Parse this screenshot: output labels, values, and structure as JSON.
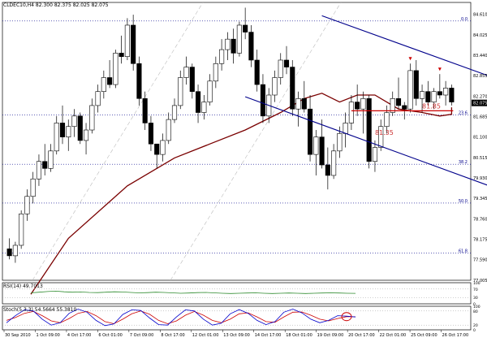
{
  "symbol_header": "CLDEC10,H4  82.300 82.375 82.025 82.075",
  "rsi_label": "RSI(14) 49.7013",
  "stoch_label": "Stoch(5,3,3) 54.5664 55.3810",
  "colors": {
    "background": "#ffffff",
    "bull_candle": "#ffffff",
    "bear_candle": "#000000",
    "moving_average": "#7a0000",
    "channel_lines": "#00008b",
    "fib_lines": "#00008b",
    "support_line": "#cc0000",
    "annotation_text": "#cc3333",
    "arrow": "#cc0000",
    "rsi_line": "#2e8b2e",
    "stoch_main": "#0000cc",
    "stoch_signal": "#cc0000",
    "price_tag": "#000000"
  },
  "price_axis": {
    "labels": [
      "84.610",
      "84.025",
      "83.440",
      "82.855",
      "82.270",
      "81.685",
      "81.100",
      "80.515",
      "79.930",
      "79.345",
      "78.760",
      "78.175",
      "77.590",
      "77.005"
    ],
    "current_price": "82.075"
  },
  "time_axis": {
    "labels": [
      "30 Sep 2010",
      "1 Oct 09:00",
      "4 Oct 17:00",
      "6 Oct 01:00",
      "7 Oct 09:00",
      "8 Oct 17:00",
      "12 Oct 01:00",
      "13 Oct 09:00",
      "14 Oct 17:00",
      "18 Oct 01:00",
      "19 Oct 09:00",
      "20 Oct 17:00",
      "22 Oct 01:00",
      "25 Oct 09:00",
      "26 Oct 17:00"
    ]
  },
  "fib_labels": [
    "0.0",
    "23.6",
    "38.2",
    "50.0",
    "61.8"
  ],
  "annotations": [
    "81.85",
    "81.35"
  ],
  "rsi_axis": [
    "100",
    "70",
    "30",
    "0"
  ],
  "stoch_axis": [
    "100",
    "80",
    "20",
    "0"
  ],
  "chart_data": {
    "type": "candlestick",
    "title": "CLDEC10,H4",
    "ylim": [
      77.0,
      84.95
    ],
    "fib_levels": [
      {
        "label": "0.0",
        "value": 84.42
      },
      {
        "label": "23.6",
        "value": 81.73
      },
      {
        "label": "38.2",
        "value": 80.32
      },
      {
        "label": "50.0",
        "value": 79.21
      },
      {
        "label": "61.8",
        "value": 77.78
      }
    ],
    "channel": {
      "upper": {
        "from": {
          "bar": 53,
          "price": 84.57
        },
        "to": {
          "bar": 112,
          "price": 80.98
        }
      },
      "lower": {
        "from": {
          "bar": 40,
          "price": 82.25
        },
        "to": {
          "bar": 98,
          "price": 78.68
        }
      }
    },
    "support_line": 81.85,
    "annotation_values": [
      81.85,
      81.35
    ],
    "ohlc": [
      [
        77.9,
        78.2,
        77.6,
        77.7
      ],
      [
        77.7,
        78.1,
        77.5,
        78.0
      ],
      [
        78.0,
        79.0,
        77.9,
        78.9
      ],
      [
        78.9,
        79.6,
        78.7,
        79.4
      ],
      [
        79.4,
        80.1,
        79.2,
        79.9
      ],
      [
        79.9,
        80.6,
        79.7,
        80.4
      ],
      [
        80.4,
        80.9,
        80.0,
        80.2
      ],
      [
        80.2,
        80.9,
        80.1,
        80.7
      ],
      [
        80.7,
        81.7,
        80.6,
        81.5
      ],
      [
        81.5,
        82.0,
        80.9,
        81.1
      ],
      [
        81.1,
        81.6,
        80.7,
        81.4
      ],
      [
        81.4,
        81.9,
        81.1,
        81.7
      ],
      [
        81.7,
        81.8,
        80.9,
        81.0
      ],
      [
        81.0,
        81.5,
        80.6,
        81.3
      ],
      [
        81.3,
        82.2,
        81.2,
        82.0
      ],
      [
        82.0,
        82.6,
        81.8,
        82.4
      ],
      [
        82.4,
        83.0,
        82.2,
        82.8
      ],
      [
        82.8,
        83.3,
        82.5,
        82.6
      ],
      [
        82.6,
        83.6,
        82.5,
        83.5
      ],
      [
        83.5,
        84.0,
        83.2,
        83.4
      ],
      [
        83.4,
        84.5,
        83.3,
        84.3
      ],
      [
        84.3,
        84.6,
        83.0,
        83.2
      ],
      [
        83.2,
        83.4,
        82.0,
        82.2
      ],
      [
        82.2,
        82.4,
        81.3,
        81.5
      ],
      [
        81.5,
        81.7,
        80.7,
        80.9
      ],
      [
        80.9,
        80.9,
        80.2,
        80.6
      ],
      [
        80.6,
        81.2,
        80.4,
        81.0
      ],
      [
        81.0,
        81.8,
        80.9,
        81.6
      ],
      [
        81.6,
        82.2,
        81.5,
        82.0
      ],
      [
        82.0,
        83.0,
        81.9,
        82.8
      ],
      [
        82.8,
        83.4,
        82.6,
        83.1
      ],
      [
        83.1,
        83.2,
        82.2,
        82.4
      ],
      [
        82.4,
        82.6,
        81.5,
        81.8
      ],
      [
        81.8,
        82.3,
        81.6,
        82.1
      ],
      [
        82.1,
        82.9,
        82.0,
        82.7
      ],
      [
        82.7,
        83.4,
        82.5,
        83.2
      ],
      [
        83.2,
        83.9,
        83.0,
        83.6
      ],
      [
        83.6,
        84.1,
        83.3,
        83.9
      ],
      [
        83.9,
        84.2,
        83.2,
        83.5
      ],
      [
        83.5,
        84.4,
        83.4,
        84.3
      ],
      [
        84.3,
        84.8,
        83.9,
        84.1
      ],
      [
        84.1,
        84.3,
        83.1,
        83.3
      ],
      [
        83.3,
        83.6,
        82.4,
        82.6
      ],
      [
        82.6,
        82.9,
        81.5,
        81.7
      ],
      [
        81.7,
        82.5,
        81.5,
        82.3
      ],
      [
        82.3,
        83.0,
        82.1,
        82.8
      ],
      [
        82.8,
        83.5,
        82.6,
        83.3
      ],
      [
        83.3,
        83.7,
        82.9,
        83.1
      ],
      [
        83.1,
        83.3,
        81.7,
        81.9
      ],
      [
        81.9,
        82.4,
        81.4,
        82.2
      ],
      [
        82.2,
        82.7,
        81.8,
        81.9
      ],
      [
        81.9,
        82.3,
        80.4,
        80.6
      ],
      [
        80.6,
        81.3,
        80.0,
        81.1
      ],
      [
        81.1,
        81.6,
        80.2,
        80.3
      ],
      [
        80.3,
        80.8,
        79.6,
        80.0
      ],
      [
        80.0,
        80.9,
        79.9,
        80.7
      ],
      [
        80.7,
        81.4,
        80.5,
        81.2
      ],
      [
        81.2,
        81.8,
        80.8,
        81.5
      ],
      [
        81.5,
        82.3,
        81.3,
        82.1
      ],
      [
        82.1,
        82.6,
        81.7,
        81.9
      ],
      [
        81.9,
        82.4,
        81.2,
        82.2
      ],
      [
        82.2,
        82.3,
        80.2,
        80.4
      ],
      [
        80.4,
        81.0,
        80.1,
        80.8
      ],
      [
        80.8,
        81.6,
        80.7,
        81.4
      ],
      [
        81.4,
        82.0,
        81.2,
        81.8
      ],
      [
        81.8,
        82.4,
        81.7,
        82.2
      ],
      [
        82.2,
        82.8,
        81.9,
        82.0
      ],
      [
        82.0,
        82.1,
        81.6,
        81.9
      ],
      [
        81.9,
        83.2,
        81.8,
        83.0
      ],
      [
        83.0,
        83.3,
        82.0,
        82.2
      ],
      [
        82.2,
        82.6,
        81.8,
        82.4
      ],
      [
        82.4,
        82.7,
        82.0,
        82.1
      ],
      [
        82.1,
        82.5,
        81.9,
        82.4
      ],
      [
        82.4,
        82.9,
        82.2,
        82.3
      ],
      [
        82.3,
        82.7,
        82.0,
        82.5
      ],
      [
        82.5,
        82.6,
        82.0,
        82.1
      ]
    ],
    "moving_average": [
      [
        0,
        76.6
      ],
      [
        10,
        78.2
      ],
      [
        20,
        79.7
      ],
      [
        28,
        80.5
      ],
      [
        34,
        80.9
      ],
      [
        40,
        81.3
      ],
      [
        46,
        81.8
      ],
      [
        50,
        82.2
      ],
      [
        53,
        82.35
      ],
      [
        56,
        82.1
      ],
      [
        59,
        82.3
      ],
      [
        62,
        82.3
      ],
      [
        66,
        81.9
      ],
      [
        70,
        81.8
      ],
      [
        73,
        81.7
      ],
      [
        76,
        81.75
      ],
      [
        78,
        81.9
      ],
      [
        80,
        81.95
      ]
    ],
    "rsi": [
      52,
      55,
      58,
      60,
      57,
      55,
      56,
      54,
      53,
      55,
      57,
      56,
      54,
      52,
      53,
      55,
      54,
      52,
      50,
      51,
      53,
      54,
      52,
      50,
      49,
      50,
      51,
      52,
      50,
      49,
      50,
      51,
      50,
      49,
      50,
      51,
      52,
      51,
      50,
      49.7
    ],
    "stoch_main": [
      30,
      60,
      85,
      80,
      45,
      20,
      30,
      70,
      88,
      75,
      40,
      18,
      25,
      65,
      85,
      82,
      50,
      22,
      20,
      55,
      85,
      80,
      45,
      20,
      28,
      68,
      86,
      70,
      40,
      22,
      35,
      75,
      88,
      72,
      45,
      30,
      40,
      60,
      58,
      54.6
    ],
    "stoch_signal": [
      40,
      52,
      70,
      78,
      60,
      38,
      30,
      48,
      70,
      78,
      60,
      35,
      26,
      45,
      68,
      80,
      66,
      40,
      26,
      38,
      62,
      78,
      62,
      40,
      30,
      45,
      68,
      72,
      55,
      35,
      32,
      55,
      75,
      76,
      62,
      45,
      38,
      48,
      56,
      55.4
    ]
  }
}
